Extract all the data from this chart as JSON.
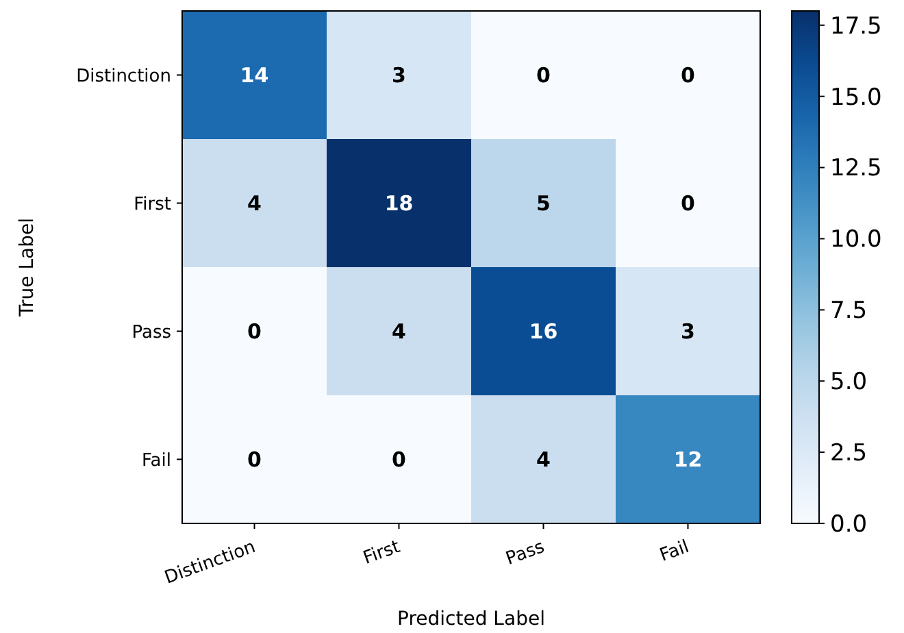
{
  "chart_data": {
    "type": "heatmap",
    "xlabel": "Predicted Label",
    "ylabel": "True Label",
    "categories": [
      "Distinction",
      "First",
      "Pass",
      "Fail"
    ],
    "y_categories": [
      "Distinction",
      "First",
      "Pass",
      "Fail"
    ],
    "cells": [
      [
        14,
        3,
        0,
        0
      ],
      [
        4,
        18,
        5,
        0
      ],
      [
        0,
        4,
        16,
        3
      ],
      [
        0,
        0,
        4,
        12
      ]
    ],
    "data_labels": true,
    "clim": [
      0,
      18
    ],
    "cticks": [
      {
        "value": 0,
        "label": "0.0"
      },
      {
        "value": 2.5,
        "label": "2.5"
      },
      {
        "value": 5,
        "label": "5.0"
      },
      {
        "value": 7.5,
        "label": "7.5"
      },
      {
        "value": 10,
        "label": "10.0"
      },
      {
        "value": 12.5,
        "label": "12.5"
      },
      {
        "value": 15,
        "label": "15.0"
      },
      {
        "value": 17.5,
        "label": "17.5"
      }
    ]
  }
}
